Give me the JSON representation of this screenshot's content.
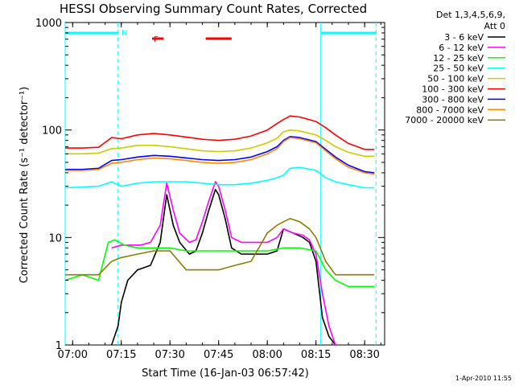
{
  "chart_data": {
    "type": "line",
    "title": "HESSI Observing Summary Count Rates, Corrected",
    "xlabel": "Start Time (16-Jan-03 06:57:42)",
    "ylabel": "Corrected Count Rate (s⁻¹ detector⁻¹)",
    "y_scale": "log",
    "ylim": [
      1,
      1000
    ],
    "xlim": [
      "06:57:42",
      "08:36:10"
    ],
    "x_ticks": [
      "07:00",
      "07:15",
      "07:30",
      "07:45",
      "08:00",
      "08:15",
      "08:30"
    ],
    "y_ticks": [
      "1",
      "10",
      "100",
      "1000"
    ],
    "legend": {
      "placement": "outside-right",
      "header_lines": [
        "Det 1,3,4,5,6,9,",
        "Att 0"
      ]
    },
    "annotations": {
      "flag_N": "N",
      "flag_F": "F",
      "night_intervals": [
        [
          "06:57:42",
          "07:14:00"
        ],
        [
          "08:16:30",
          "08:33:30"
        ]
      ],
      "flare_flag_segments": [
        [
          "07:24:30",
          "07:28:00"
        ],
        [
          "07:41:00",
          "07:49:00"
        ]
      ]
    },
    "series": [
      {
        "name": "3 - 6 keV",
        "color": "#000000",
        "x": [
          "07:12",
          "07:14",
          "07:15",
          "07:17",
          "07:20",
          "07:24",
          "07:27",
          "07:29",
          "07:31",
          "07:33",
          "07:36",
          "07:38",
          "07:40",
          "07:42",
          "07:44",
          "07:45",
          "07:47",
          "07:49",
          "07:52",
          "07:56",
          "08:00",
          "08:03",
          "08:05",
          "08:08",
          "08:11",
          "08:13",
          "08:15",
          "08:17",
          "08:19",
          "08:21"
        ],
        "y": [
          1.0,
          1.5,
          2.5,
          4.0,
          5.0,
          5.5,
          9.0,
          25.0,
          13.0,
          9.0,
          7.0,
          7.5,
          11.0,
          18.0,
          28.0,
          25.0,
          15.0,
          8.0,
          7.0,
          7.0,
          7.0,
          7.5,
          12.0,
          11.0,
          10.0,
          9.0,
          6.0,
          1.8,
          1.2,
          1.0
        ]
      },
      {
        "name": "6 - 12 keV",
        "color": "#ff00ff",
        "x": [
          "07:12",
          "07:15",
          "07:18",
          "07:21",
          "07:24",
          "07:27",
          "07:29",
          "07:31",
          "07:33",
          "07:36",
          "07:38",
          "07:40",
          "07:42",
          "07:44",
          "07:45",
          "07:47",
          "07:49",
          "07:52",
          "07:56",
          "08:00",
          "08:03",
          "08:05",
          "08:08",
          "08:11",
          "08:13",
          "08:15",
          "08:17",
          "08:19",
          "08:21"
        ],
        "y": [
          8.0,
          8.5,
          8.5,
          8.5,
          9.0,
          13.0,
          32.0,
          18.0,
          11.0,
          9.0,
          9.5,
          14.0,
          22.0,
          33.0,
          30.0,
          18.0,
          10.0,
          9.0,
          9.0,
          9.0,
          10.0,
          12.0,
          11.0,
          10.5,
          9.5,
          7.0,
          3.0,
          1.5,
          1.0
        ]
      },
      {
        "name": "12 - 25 keV",
        "color": "#00ff00",
        "x": [
          "06:57:42",
          "07:03",
          "07:08",
          "07:11",
          "07:13",
          "07:16",
          "07:20",
          "07:25",
          "07:30",
          "07:35",
          "07:40",
          "07:45",
          "07:50",
          "07:55",
          "08:00",
          "08:05",
          "08:10",
          "08:15",
          "08:18",
          "08:21",
          "08:25",
          "08:30",
          "08:33"
        ],
        "y": [
          4.0,
          4.5,
          4.0,
          9.0,
          9.5,
          8.5,
          8.0,
          8.0,
          8.0,
          7.5,
          7.5,
          7.5,
          7.5,
          7.5,
          7.5,
          8.0,
          8.0,
          7.5,
          5.0,
          4.0,
          3.5,
          3.5,
          3.5
        ]
      },
      {
        "name": "25 - 50 keV",
        "color": "#00ffff",
        "x": [
          "06:57:42",
          "07:03",
          "07:08",
          "07:12",
          "07:15",
          "07:20",
          "07:25",
          "07:30",
          "07:35",
          "07:40",
          "07:45",
          "07:50",
          "07:55",
          "08:00",
          "08:03",
          "08:05",
          "08:07",
          "08:10",
          "08:15",
          "08:18",
          "08:21",
          "08:25",
          "08:30",
          "08:33"
        ],
        "y": [
          29.0,
          29.5,
          30.0,
          33.0,
          30.0,
          32.0,
          33.0,
          33.0,
          33.0,
          32.0,
          31.0,
          31.0,
          32.0,
          34.0,
          36.0,
          38.0,
          44.0,
          45.0,
          42.0,
          36.0,
          33.0,
          31.0,
          29.0,
          29.0
        ]
      },
      {
        "name": "50 - 100 keV",
        "color": "#cccc00",
        "x": [
          "06:57:42",
          "07:03",
          "07:08",
          "07:12",
          "07:15",
          "07:20",
          "07:25",
          "07:30",
          "07:35",
          "07:40",
          "07:45",
          "07:50",
          "07:55",
          "08:00",
          "08:03",
          "08:05",
          "08:07",
          "08:10",
          "08:15",
          "08:18",
          "08:21",
          "08:25",
          "08:30",
          "08:33"
        ],
        "y": [
          60.0,
          60.0,
          61.0,
          67.0,
          68.0,
          72.0,
          72.0,
          70.0,
          67.0,
          64.0,
          63.0,
          64.0,
          68.0,
          76.0,
          84.0,
          96.0,
          100.0,
          98.0,
          90.0,
          80.0,
          70.0,
          62.0,
          57.0,
          57.0
        ]
      },
      {
        "name": "100 - 300 keV",
        "color": "#ff0000",
        "x": [
          "06:57:42",
          "07:03",
          "07:08",
          "07:12",
          "07:15",
          "07:20",
          "07:25",
          "07:30",
          "07:35",
          "07:40",
          "07:45",
          "07:50",
          "07:55",
          "08:00",
          "08:03",
          "08:05",
          "08:07",
          "08:10",
          "08:15",
          "08:18",
          "08:21",
          "08:25",
          "08:30",
          "08:33"
        ],
        "y": [
          68.0,
          68.0,
          69.0,
          85.0,
          83.0,
          90.0,
          93.0,
          90.0,
          86.0,
          82.0,
          80.0,
          82.0,
          88.0,
          100.0,
          115.0,
          125.0,
          135.0,
          132.0,
          120.0,
          105.0,
          90.0,
          75.0,
          66.0,
          66.0
        ]
      },
      {
        "name": "300 - 800 keV",
        "color": "#0000ff",
        "x": [
          "06:57:42",
          "07:03",
          "07:08",
          "07:12",
          "07:15",
          "07:20",
          "07:25",
          "07:30",
          "07:35",
          "07:40",
          "07:45",
          "07:50",
          "07:55",
          "08:00",
          "08:03",
          "08:05",
          "08:07",
          "08:10",
          "08:15",
          "08:18",
          "08:21",
          "08:25",
          "08:30",
          "08:33"
        ],
        "y": [
          43.0,
          43.0,
          44.0,
          52.0,
          53.0,
          56.0,
          58.0,
          57.0,
          55.0,
          53.0,
          52.0,
          53.0,
          56.0,
          63.0,
          70.0,
          80.0,
          87.0,
          85.0,
          78.0,
          66.0,
          56.0,
          47.0,
          41.0,
          40.0
        ]
      },
      {
        "name": "800 - 7000 keV",
        "color": "#ff8800",
        "x": [
          "06:57:42",
          "07:03",
          "07:08",
          "07:12",
          "07:15",
          "07:20",
          "07:25",
          "07:30",
          "07:35",
          "07:40",
          "07:45",
          "07:50",
          "07:55",
          "08:00",
          "08:03",
          "08:05",
          "08:07",
          "08:10",
          "08:15",
          "08:18",
          "08:21",
          "08:25",
          "08:30",
          "08:33"
        ],
        "y": [
          42.0,
          42.0,
          43.0,
          49.0,
          50.0,
          53.0,
          55.0,
          54.0,
          52.0,
          50.0,
          49.0,
          50.0,
          53.0,
          60.0,
          67.0,
          78.0,
          85.0,
          83.0,
          76.0,
          64.0,
          54.0,
          45.0,
          40.0,
          39.0
        ]
      },
      {
        "name": "7000 - 20000 keV",
        "color": "#8b7d00",
        "x": [
          "06:57:42",
          "07:03",
          "07:08",
          "07:12",
          "07:15",
          "07:20",
          "07:25",
          "07:30",
          "07:35",
          "07:40",
          "07:45",
          "07:50",
          "07:55",
          "08:00",
          "08:03",
          "08:05",
          "08:07",
          "08:10",
          "08:13",
          "08:15",
          "08:18",
          "08:21",
          "08:25",
          "08:30",
          "08:33"
        ],
        "y": [
          4.5,
          4.5,
          4.5,
          6.0,
          6.5,
          7.0,
          7.5,
          7.5,
          5.0,
          5.0,
          5.0,
          5.5,
          6.0,
          11.0,
          13.0,
          14.0,
          15.0,
          14.0,
          12.0,
          10.0,
          6.0,
          4.5,
          4.5,
          4.5,
          4.5
        ]
      }
    ]
  },
  "footer": {
    "timestamp": "1-Apr-2010 11:55"
  }
}
